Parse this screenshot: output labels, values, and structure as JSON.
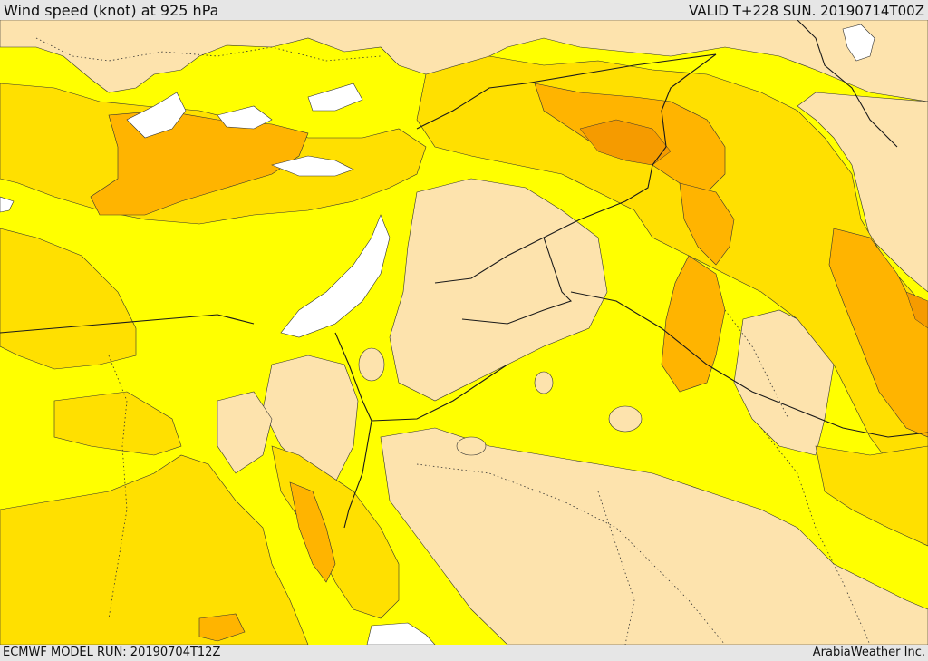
{
  "header": {
    "title": "Wind speed (knot) at 925 hPa",
    "valid": "VALID T+228 SUN. 20190714T00Z"
  },
  "footer": {
    "model_run": "ECMWF MODEL RUN: 20190704T12Z",
    "brand": "ArabiaWeather Inc."
  },
  "map": {
    "colors": {
      "water": "#ffffff",
      "light_wind": "#fde3ad",
      "moderate_wind": "#ffff00",
      "fresh_wind": "#ffe000",
      "strong_wind": "#ffb400",
      "very_strong_wind": "#f59b00",
      "border": "#1a1a1a"
    }
  }
}
